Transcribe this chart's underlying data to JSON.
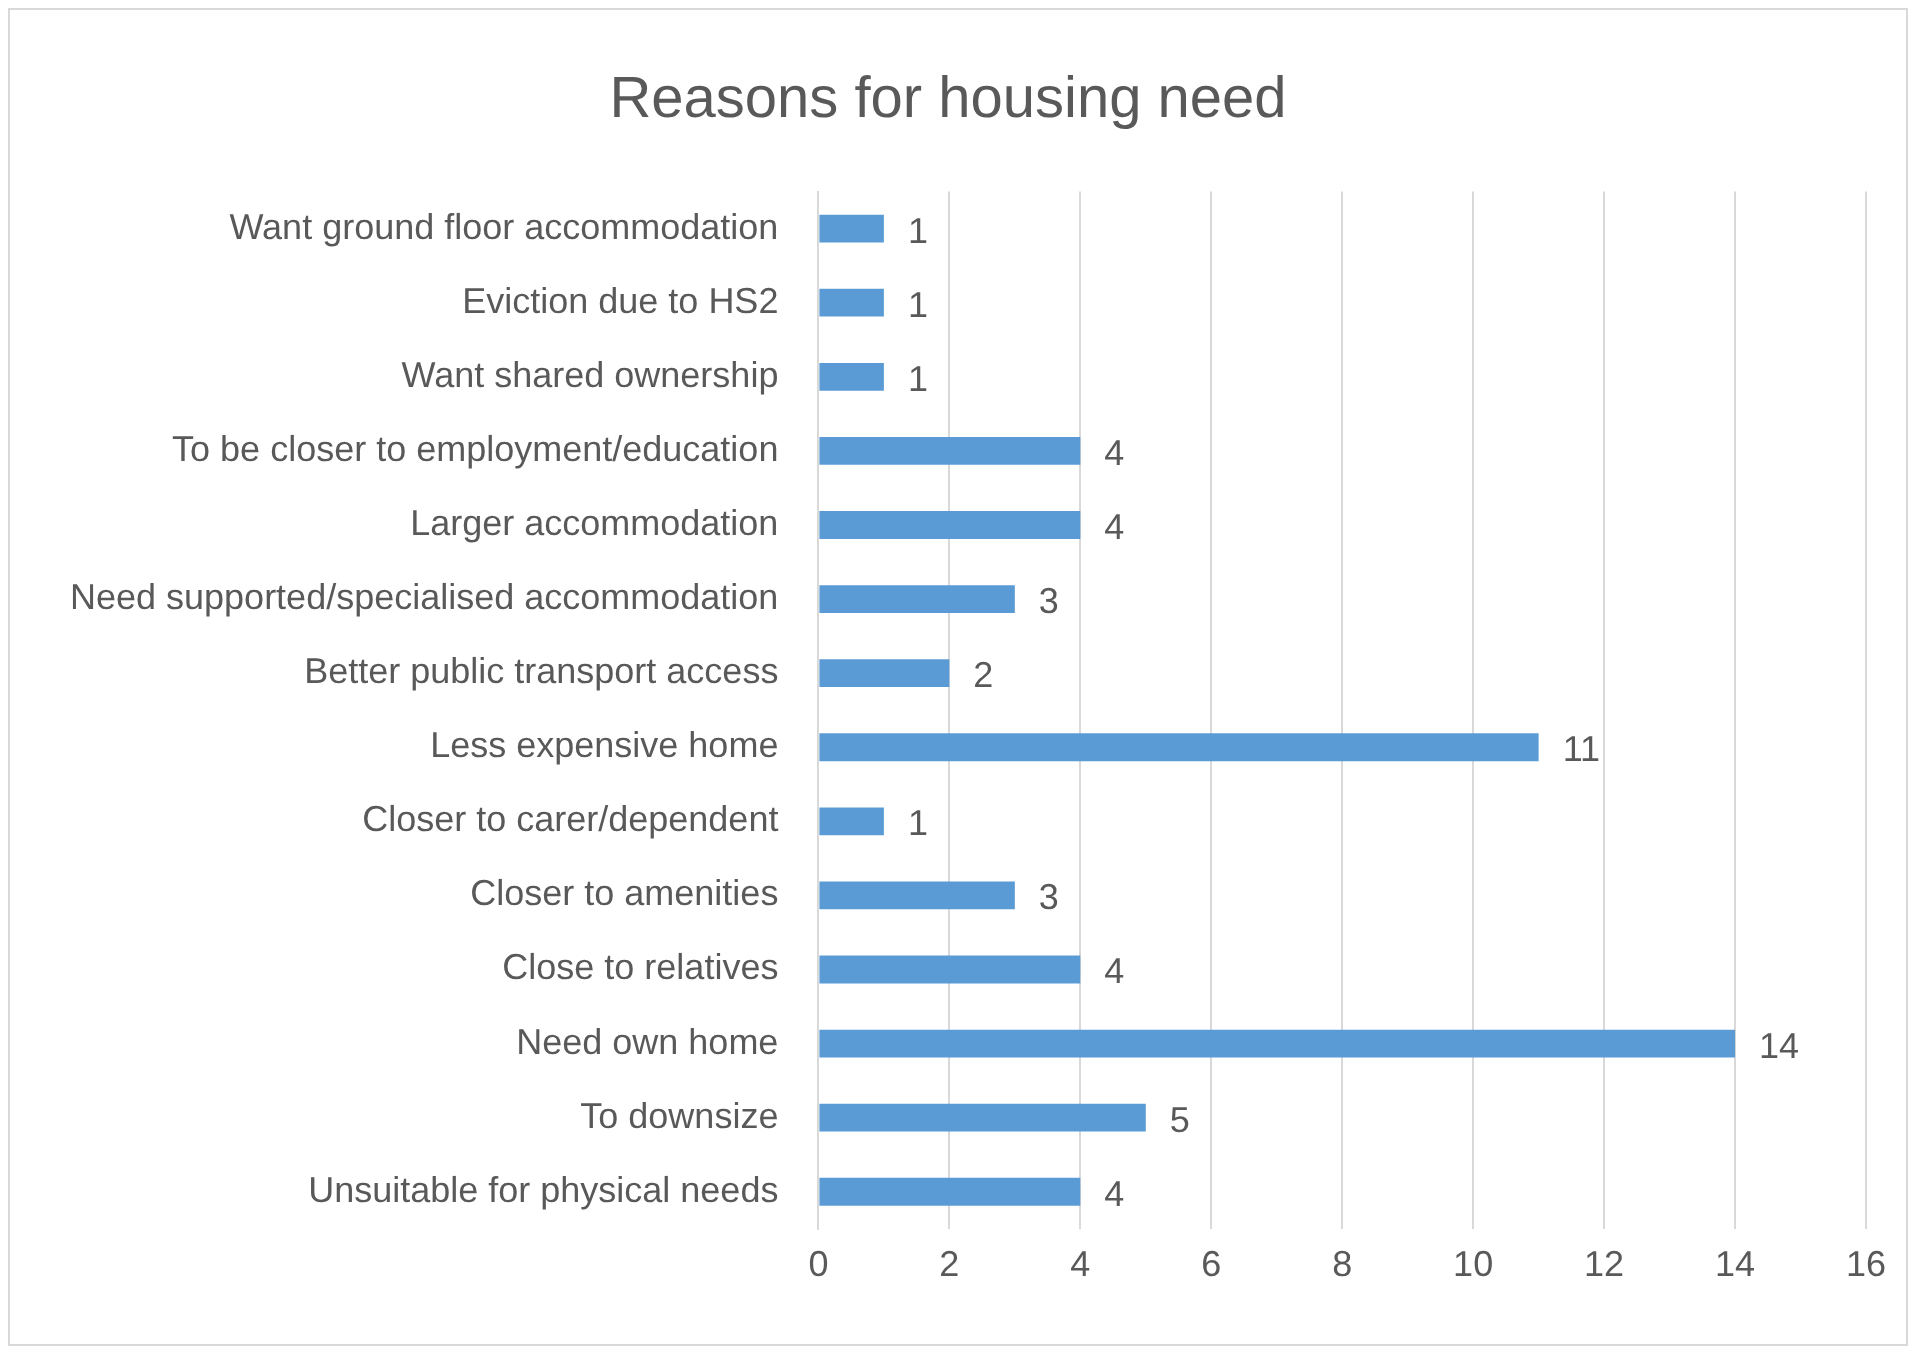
{
  "chart_data": {
    "type": "bar",
    "orientation": "horizontal",
    "title": "Reasons for housing need",
    "categories": [
      "Want ground floor accommodation",
      "Eviction due to HS2",
      "Want shared ownership",
      "To be closer to employment/education",
      "Larger accommodation",
      "Need supported/specialised accommodation",
      "Better public transport access",
      "Less expensive home",
      "Closer to carer/dependent",
      "Closer to amenities",
      "Close to relatives",
      "Need own home",
      "To downsize",
      "Unsuitable for physical needs"
    ],
    "values": [
      1,
      1,
      1,
      4,
      4,
      3,
      2,
      11,
      1,
      3,
      4,
      14,
      5,
      4
    ],
    "color": "#5b9bd5",
    "xlim": [
      0,
      16
    ],
    "xticks": [
      0,
      2,
      4,
      6,
      8,
      10,
      12,
      14,
      16
    ],
    "grid": "x",
    "data_labels": true,
    "legend": false
  }
}
